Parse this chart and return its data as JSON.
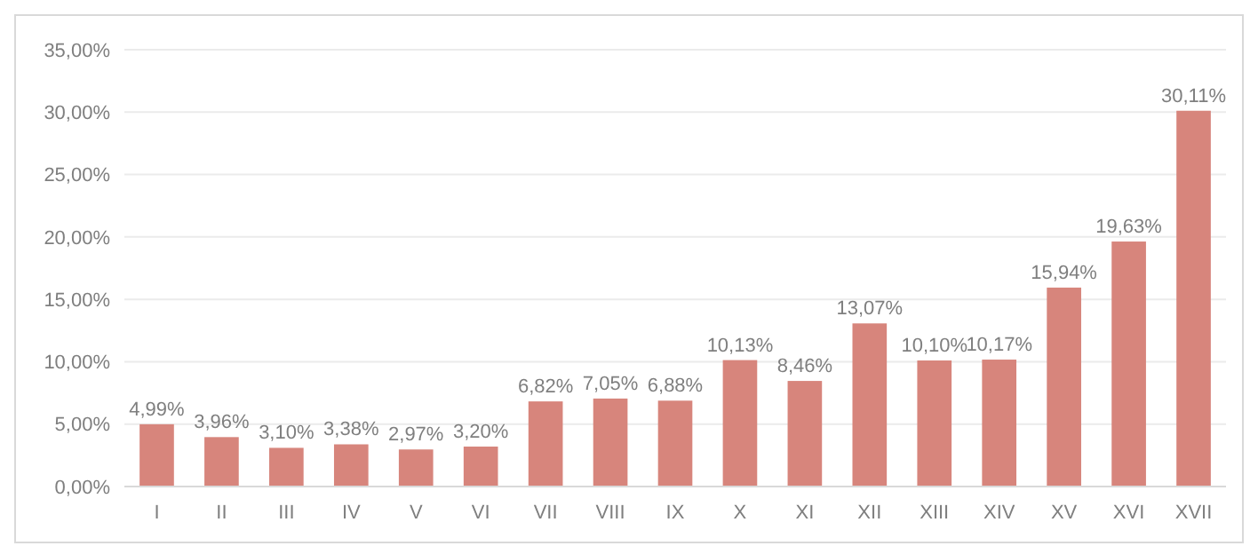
{
  "chart_data": {
    "type": "bar",
    "categories": [
      "I",
      "II",
      "III",
      "IV",
      "V",
      "VI",
      "VII",
      "VIII",
      "IX",
      "X",
      "XI",
      "XII",
      "XIII",
      "XIV",
      "XV",
      "XVI",
      "XVII"
    ],
    "values": [
      4.99,
      3.96,
      3.1,
      3.38,
      2.97,
      3.2,
      6.82,
      7.05,
      6.88,
      10.13,
      8.46,
      13.07,
      10.1,
      10.17,
      15.94,
      19.63,
      30.11
    ],
    "value_labels": [
      "4,99%",
      "3,96%",
      "3,10%",
      "3,38%",
      "2,97%",
      "3,20%",
      "6,82%",
      "7,05%",
      "6,88%",
      "10,13%",
      "8,46%",
      "13,07%",
      "10,10%",
      "10,17%",
      "15,94%",
      "19,63%",
      "30,11%"
    ],
    "color": "#d7857c",
    "ylim": [
      0,
      35
    ],
    "yticks": [
      {
        "value": 0,
        "label": "0,00%"
      },
      {
        "value": 5,
        "label": "5,00%"
      },
      {
        "value": 10,
        "label": "10,00%"
      },
      {
        "value": 15,
        "label": "15,00%"
      },
      {
        "value": 20,
        "label": "20,00%"
      },
      {
        "value": 25,
        "label": "25,00%"
      },
      {
        "value": 30,
        "label": "30,00%"
      },
      {
        "value": 35,
        "label": "35,00%"
      }
    ],
    "grid": "y"
  }
}
